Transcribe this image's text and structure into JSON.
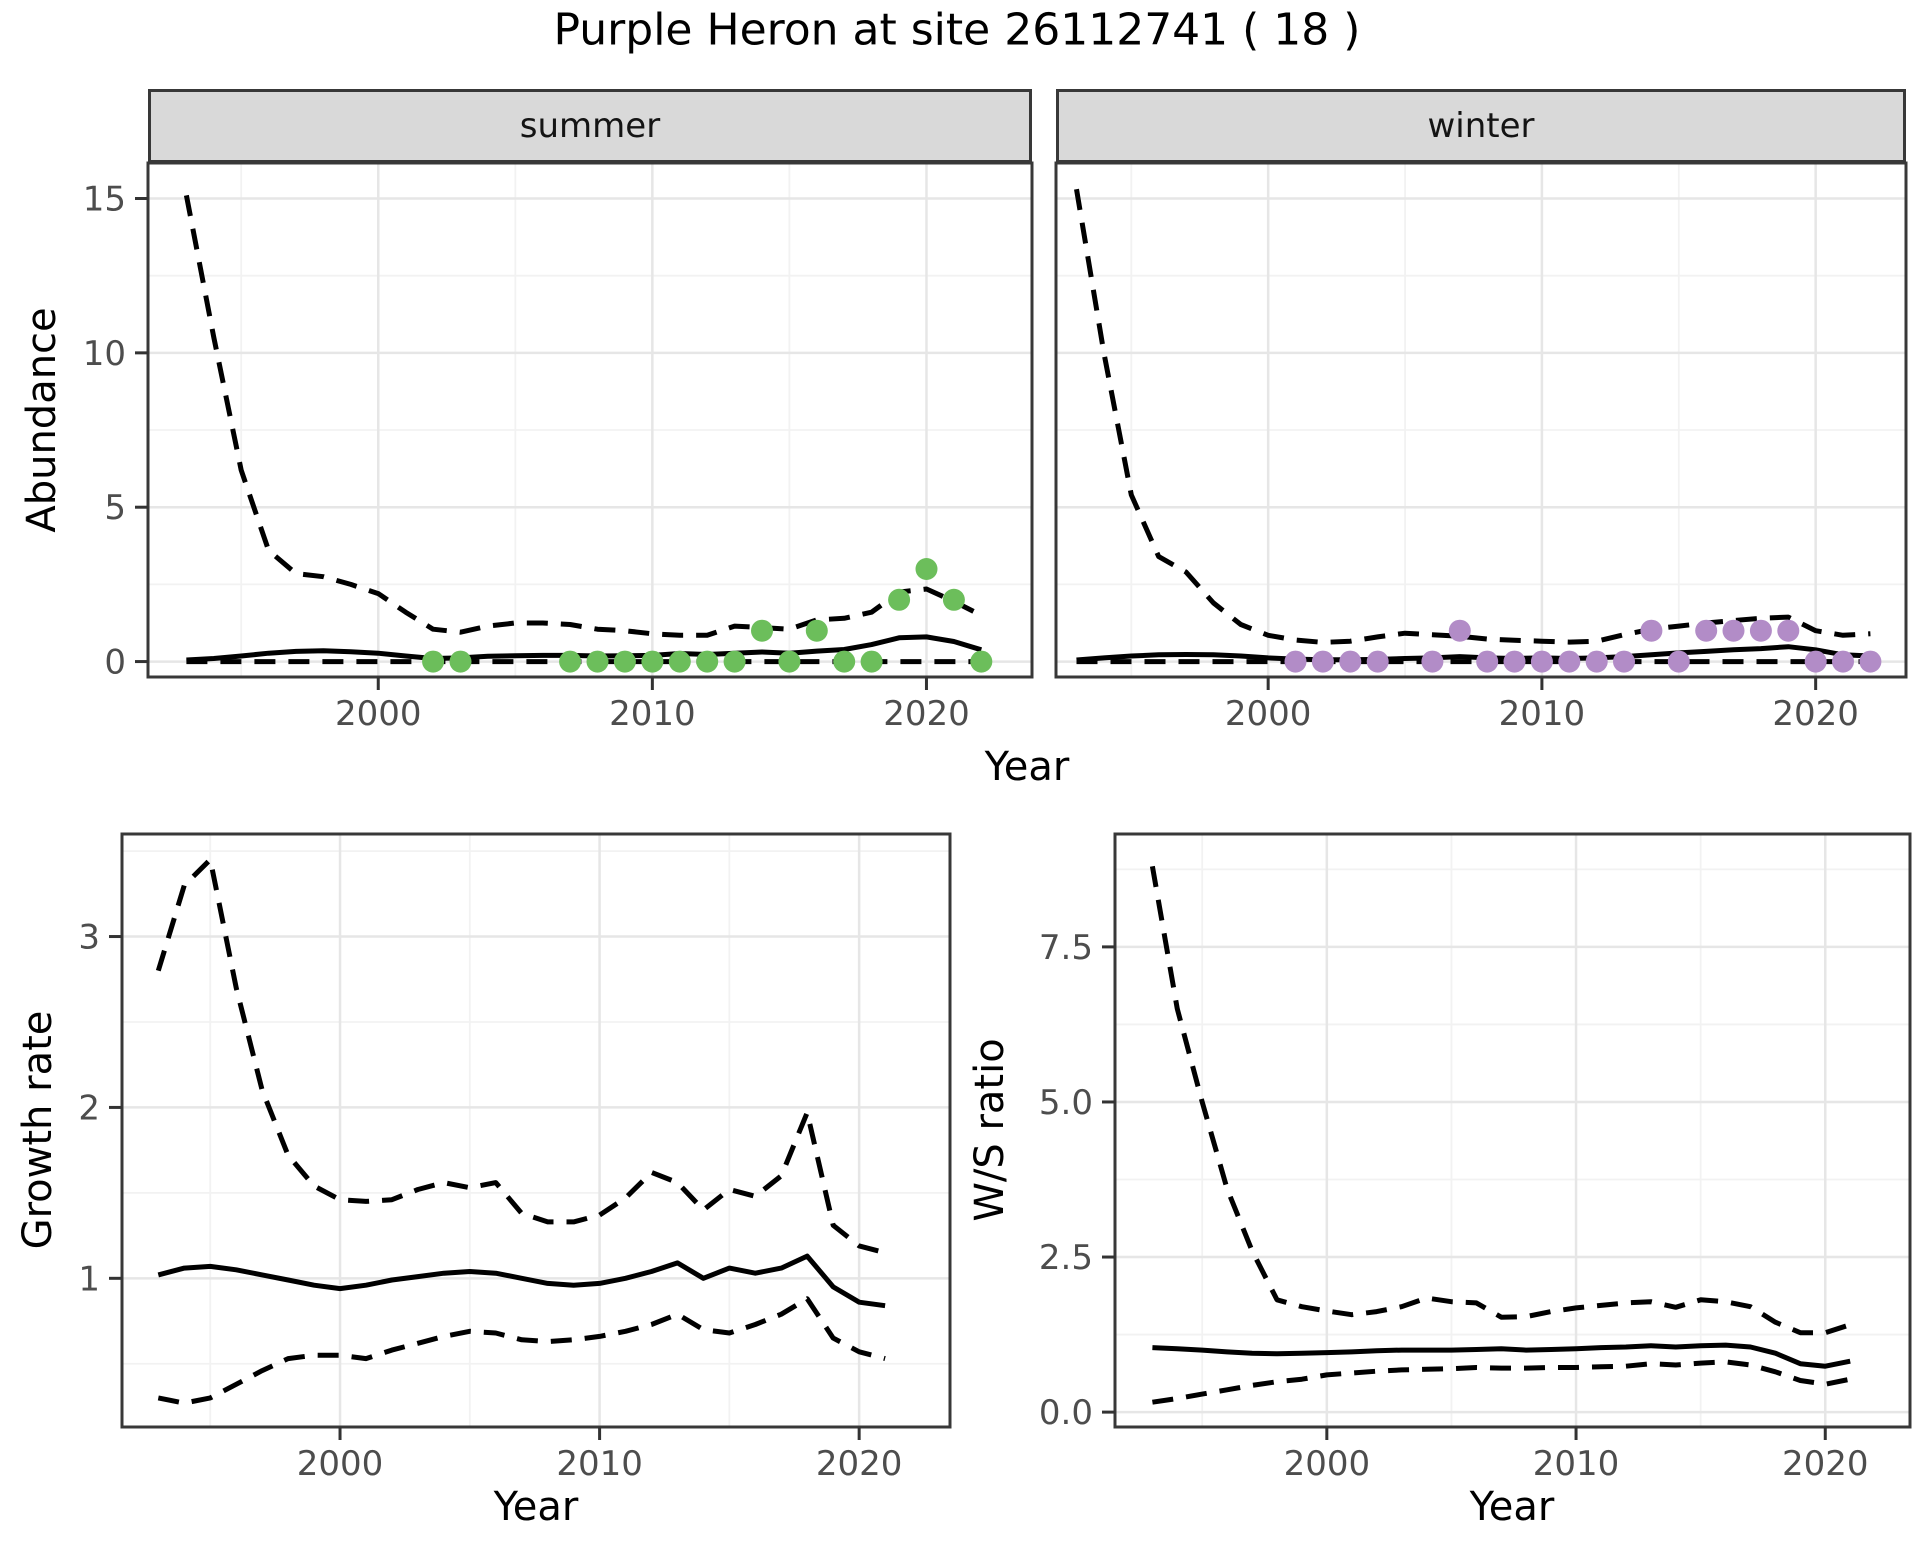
{
  "title": "Purple Heron at site 26112741 ( 18 )",
  "colors": {
    "background": "#ffffff",
    "strip_bg": "#D9D9D9",
    "panel_border": "#383838",
    "grid_major": "#E6E6E6",
    "grid_minor": "#F2F2F2",
    "tick_mark": "#333333",
    "tick_text": "#4D4D4D",
    "line": "#000000",
    "summer_point": "#6CBE5B",
    "winter_point": "#B28CC7"
  },
  "chart_data": [
    {
      "name": "abundance-summer",
      "type": "line",
      "facet_label": "summer",
      "ylabel": "Abundance",
      "xlabel": "Year",
      "xlim": [
        1991.6,
        2023.85
      ],
      "ylim": [
        -0.5,
        16.15
      ],
      "x_major_ticks": [
        2000,
        2010,
        2020
      ],
      "x_tick_labels": [
        "2000",
        "2010",
        "2020"
      ],
      "x_minor_ticks": [
        1995,
        2005,
        2015
      ],
      "y_major_ticks": [
        0,
        5,
        10,
        15
      ],
      "y_tick_labels": [
        "0",
        "5",
        "10",
        "15"
      ],
      "y_minor_ticks": [
        2.5,
        7.5,
        12.5
      ],
      "grid": true,
      "legend": "none",
      "series": [
        {
          "name": "upper-95ci",
          "style": "dashed",
          "color": "#000000",
          "x": [
            1993,
            1994,
            1995,
            1996,
            1997,
            1998,
            1999,
            2000,
            2001,
            2002,
            2003,
            2004,
            2005,
            2006,
            2007,
            2008,
            2009,
            2010,
            2011,
            2012,
            2013,
            2014,
            2015,
            2016,
            2017,
            2018,
            2019,
            2020,
            2021,
            2022
          ],
          "y": [
            15.1,
            10.5,
            6.2,
            3.6,
            2.85,
            2.75,
            2.5,
            2.2,
            1.6,
            1.05,
            0.95,
            1.15,
            1.25,
            1.25,
            1.2,
            1.05,
            1.0,
            0.9,
            0.85,
            0.85,
            1.15,
            1.1,
            1.05,
            1.35,
            1.4,
            1.6,
            2.25,
            2.35,
            1.95,
            1.5
          ]
        },
        {
          "name": "mean",
          "style": "solid",
          "color": "#000000",
          "x": [
            1993,
            1994,
            1995,
            1996,
            1997,
            1998,
            1999,
            2000,
            2001,
            2002,
            2003,
            2004,
            2005,
            2006,
            2007,
            2008,
            2009,
            2010,
            2011,
            2012,
            2013,
            2014,
            2015,
            2016,
            2017,
            2018,
            2019,
            2020,
            2021,
            2022
          ],
          "y": [
            0.05,
            0.1,
            0.18,
            0.27,
            0.33,
            0.35,
            0.32,
            0.27,
            0.18,
            0.1,
            0.12,
            0.17,
            0.19,
            0.2,
            0.2,
            0.18,
            0.19,
            0.2,
            0.26,
            0.23,
            0.27,
            0.31,
            0.27,
            0.34,
            0.39,
            0.55,
            0.77,
            0.8,
            0.65,
            0.38
          ]
        },
        {
          "name": "lower-95ci",
          "style": "dashed",
          "color": "#000000",
          "x": [
            1993,
            1994,
            1995,
            1996,
            1997,
            1998,
            1999,
            2000,
            2001,
            2002,
            2003,
            2004,
            2005,
            2006,
            2007,
            2008,
            2009,
            2010,
            2011,
            2012,
            2013,
            2014,
            2015,
            2016,
            2017,
            2018,
            2019,
            2020,
            2021,
            2022
          ],
          "y": [
            0,
            0,
            0,
            0,
            0,
            0,
            0,
            0,
            0,
            0,
            0,
            0,
            0,
            0,
            0,
            0,
            0,
            0,
            0,
            0,
            0,
            0,
            0,
            0,
            0,
            0,
            0,
            0,
            0,
            0
          ]
        },
        {
          "name": "observed-counts",
          "style": "points",
          "color": "#6CBE5B",
          "x": [
            2002,
            2003,
            2007,
            2008,
            2009,
            2010,
            2011,
            2012,
            2013,
            2014,
            2015,
            2016,
            2017,
            2018,
            2019,
            2020,
            2021,
            2022
          ],
          "y": [
            0,
            0,
            0,
            0,
            0,
            0,
            0,
            0,
            0,
            1,
            0,
            1,
            0,
            0,
            2,
            3,
            2,
            0
          ]
        }
      ]
    },
    {
      "name": "abundance-winter",
      "type": "line",
      "facet_label": "winter",
      "ylabel": "",
      "xlabel": "Year",
      "xlim": [
        1992.25,
        2023.3
      ],
      "ylim": [
        -0.5,
        16.15
      ],
      "x_major_ticks": [
        2000,
        2010,
        2020
      ],
      "x_tick_labels": [
        "2000",
        "2010",
        "2020"
      ],
      "x_minor_ticks": [
        1995,
        2005,
        2015
      ],
      "y_major_ticks": [
        0,
        5,
        10,
        15
      ],
      "y_tick_labels": [
        "0",
        "5",
        "10",
        "15"
      ],
      "y_minor_ticks": [
        2.5,
        7.5,
        12.5
      ],
      "grid": true,
      "legend": "none",
      "series": [
        {
          "name": "upper-95ci",
          "style": "dashed",
          "color": "#000000",
          "x": [
            1993,
            1994,
            1995,
            1996,
            1997,
            1998,
            1999,
            2000,
            2001,
            2002,
            2003,
            2004,
            2005,
            2006,
            2007,
            2008,
            2009,
            2010,
            2011,
            2012,
            2013,
            2014,
            2015,
            2016,
            2017,
            2018,
            2019,
            2020,
            2021,
            2022
          ],
          "y": [
            15.3,
            10.0,
            5.4,
            3.4,
            2.9,
            1.9,
            1.2,
            0.85,
            0.7,
            0.62,
            0.66,
            0.8,
            0.92,
            0.87,
            0.82,
            0.73,
            0.69,
            0.66,
            0.63,
            0.66,
            0.87,
            1.05,
            1.15,
            1.25,
            1.33,
            1.4,
            1.44,
            1.0,
            0.85,
            0.9
          ]
        },
        {
          "name": "mean",
          "style": "solid",
          "color": "#000000",
          "x": [
            1993,
            1994,
            1995,
            1996,
            1997,
            1998,
            1999,
            2000,
            2001,
            2002,
            2003,
            2004,
            2005,
            2006,
            2007,
            2008,
            2009,
            2010,
            2011,
            2012,
            2013,
            2014,
            2015,
            2016,
            2017,
            2018,
            2019,
            2020,
            2021,
            2022
          ],
          "y": [
            0.05,
            0.12,
            0.18,
            0.22,
            0.23,
            0.22,
            0.18,
            0.12,
            0.08,
            0.06,
            0.06,
            0.07,
            0.1,
            0.12,
            0.16,
            0.12,
            0.1,
            0.12,
            0.1,
            0.12,
            0.16,
            0.22,
            0.28,
            0.33,
            0.38,
            0.42,
            0.48,
            0.38,
            0.22,
            0.18
          ]
        },
        {
          "name": "lower-95ci",
          "style": "dashed",
          "color": "#000000",
          "x": [
            1993,
            1994,
            1995,
            1996,
            1997,
            1998,
            1999,
            2000,
            2001,
            2002,
            2003,
            2004,
            2005,
            2006,
            2007,
            2008,
            2009,
            2010,
            2011,
            2012,
            2013,
            2014,
            2015,
            2016,
            2017,
            2018,
            2019,
            2020,
            2021,
            2022
          ],
          "y": [
            0,
            0,
            0,
            0,
            0,
            0,
            0,
            0,
            0,
            0,
            0,
            0,
            0,
            0,
            0,
            0,
            0,
            0,
            0,
            0,
            0,
            0,
            0,
            0,
            0,
            0,
            0,
            0,
            0,
            0
          ]
        },
        {
          "name": "observed-counts",
          "style": "points",
          "color": "#B28CC7",
          "x": [
            2001,
            2002,
            2003,
            2004,
            2006,
            2007,
            2008,
            2009,
            2010,
            2011,
            2012,
            2013,
            2014,
            2015,
            2016,
            2017,
            2018,
            2019,
            2020,
            2021,
            2022
          ],
          "y": [
            0,
            0,
            0,
            0,
            0,
            1,
            0,
            0,
            0,
            0,
            0,
            0,
            1,
            0,
            1,
            1,
            1,
            1,
            0,
            0,
            0
          ]
        }
      ]
    },
    {
      "name": "growth-rate",
      "type": "line",
      "facet_label": "",
      "ylabel": "Growth rate",
      "xlabel": "Year",
      "xlim": [
        1991.6,
        2023.5
      ],
      "ylim": [
        0.13,
        3.6
      ],
      "x_major_ticks": [
        2000,
        2010,
        2020
      ],
      "x_tick_labels": [
        "2000",
        "2010",
        "2020"
      ],
      "x_minor_ticks": [
        1995,
        2005,
        2015
      ],
      "y_major_ticks": [
        1,
        2,
        3
      ],
      "y_tick_labels": [
        "1",
        "2",
        "3"
      ],
      "y_minor_ticks": [
        0.5,
        1.5,
        2.5,
        3.5
      ],
      "grid": true,
      "legend": "none",
      "series": [
        {
          "name": "upper-95ci",
          "style": "dashed",
          "color": "#000000",
          "x": [
            1993,
            1994,
            1995,
            1996,
            1997,
            1998,
            1999,
            2000,
            2001,
            2002,
            2003,
            2004,
            2005,
            2006,
            2007,
            2008,
            2009,
            2010,
            2011,
            2012,
            2013,
            2014,
            2015,
            2016,
            2017,
            2018,
            2019,
            2020,
            2021
          ],
          "y": [
            2.8,
            3.3,
            3.45,
            2.7,
            2.1,
            1.72,
            1.54,
            1.46,
            1.45,
            1.46,
            1.52,
            1.56,
            1.53,
            1.56,
            1.38,
            1.33,
            1.33,
            1.37,
            1.47,
            1.62,
            1.56,
            1.4,
            1.52,
            1.48,
            1.6,
            1.97,
            1.31,
            1.19,
            1.15
          ]
        },
        {
          "name": "mean",
          "style": "solid",
          "color": "#000000",
          "x": [
            1993,
            1994,
            1995,
            1996,
            1997,
            1998,
            1999,
            2000,
            2001,
            2002,
            2003,
            2004,
            2005,
            2006,
            2007,
            2008,
            2009,
            2010,
            2011,
            2012,
            2013,
            2014,
            2015,
            2016,
            2017,
            2018,
            2019,
            2020,
            2021
          ],
          "y": [
            1.02,
            1.06,
            1.07,
            1.05,
            1.02,
            0.99,
            0.96,
            0.94,
            0.96,
            0.99,
            1.01,
            1.03,
            1.04,
            1.03,
            1.0,
            0.97,
            0.96,
            0.97,
            1.0,
            1.04,
            1.09,
            1.0,
            1.06,
            1.03,
            1.06,
            1.13,
            0.95,
            0.86,
            0.84
          ]
        },
        {
          "name": "lower-95ci",
          "style": "dashed",
          "color": "#000000",
          "x": [
            1993,
            1994,
            1995,
            1996,
            1997,
            1998,
            1999,
            2000,
            2001,
            2002,
            2003,
            2004,
            2005,
            2006,
            2007,
            2008,
            2009,
            2010,
            2011,
            2012,
            2013,
            2014,
            2015,
            2016,
            2017,
            2018,
            2019,
            2020,
            2021
          ],
          "y": [
            0.3,
            0.27,
            0.3,
            0.38,
            0.46,
            0.53,
            0.55,
            0.55,
            0.53,
            0.58,
            0.62,
            0.66,
            0.69,
            0.68,
            0.64,
            0.63,
            0.64,
            0.66,
            0.69,
            0.73,
            0.79,
            0.7,
            0.68,
            0.73,
            0.79,
            0.88,
            0.65,
            0.57,
            0.53
          ]
        }
      ]
    },
    {
      "name": "ws-ratio",
      "type": "line",
      "facet_label": "",
      "ylabel": "W/S ratio",
      "xlabel": "Year",
      "xlim": [
        1991.5,
        2023.4
      ],
      "ylim": [
        -0.24,
        9.32
      ],
      "x_major_ticks": [
        2000,
        2010,
        2020
      ],
      "x_tick_labels": [
        "2000",
        "2010",
        "2020"
      ],
      "x_minor_ticks": [
        1995,
        2005,
        2015
      ],
      "y_major_ticks": [
        0.0,
        2.5,
        5.0,
        7.5
      ],
      "y_tick_labels": [
        "0.0",
        "2.5",
        "5.0",
        "7.5"
      ],
      "y_minor_ticks": [
        1.25,
        3.75,
        6.25,
        8.75
      ],
      "grid": true,
      "legend": "none",
      "series": [
        {
          "name": "upper-95ci",
          "style": "dashed",
          "color": "#000000",
          "x": [
            1993,
            1994,
            1995,
            1996,
            1997,
            1998,
            1999,
            2000,
            2001,
            2002,
            2003,
            2004,
            2005,
            2006,
            2007,
            2008,
            2009,
            2010,
            2011,
            2012,
            2013,
            2014,
            2015,
            2016,
            2017,
            2018,
            2019,
            2020,
            2021
          ],
          "y": [
            8.8,
            6.5,
            5.0,
            3.6,
            2.6,
            1.81,
            1.7,
            1.63,
            1.57,
            1.62,
            1.7,
            1.84,
            1.78,
            1.76,
            1.53,
            1.54,
            1.62,
            1.68,
            1.72,
            1.76,
            1.78,
            1.69,
            1.81,
            1.78,
            1.7,
            1.45,
            1.28,
            1.28,
            1.41
          ]
        },
        {
          "name": "mean",
          "style": "solid",
          "color": "#000000",
          "x": [
            1993,
            1994,
            1995,
            1996,
            1997,
            1998,
            1999,
            2000,
            2001,
            2002,
            2003,
            2004,
            2005,
            2006,
            2007,
            2008,
            2009,
            2010,
            2011,
            2012,
            2013,
            2014,
            2015,
            2016,
            2017,
            2018,
            2019,
            2020,
            2021
          ],
          "y": [
            1.04,
            1.02,
            1.0,
            0.97,
            0.95,
            0.94,
            0.95,
            0.96,
            0.97,
            0.99,
            1.0,
            1.0,
            1.0,
            1.01,
            1.02,
            1.0,
            1.01,
            1.02,
            1.04,
            1.05,
            1.07,
            1.05,
            1.07,
            1.08,
            1.05,
            0.95,
            0.78,
            0.74,
            0.82
          ]
        },
        {
          "name": "lower-95ci",
          "style": "dashed",
          "color": "#000000",
          "x": [
            1993,
            1994,
            1995,
            1996,
            1997,
            1998,
            1999,
            2000,
            2001,
            2002,
            2003,
            2004,
            2005,
            2006,
            2007,
            2008,
            2009,
            2010,
            2011,
            2012,
            2013,
            2014,
            2015,
            2016,
            2017,
            2018,
            2019,
            2020,
            2021
          ],
          "y": [
            0.16,
            0.22,
            0.29,
            0.36,
            0.43,
            0.49,
            0.53,
            0.6,
            0.63,
            0.66,
            0.68,
            0.69,
            0.7,
            0.72,
            0.71,
            0.71,
            0.72,
            0.72,
            0.73,
            0.74,
            0.78,
            0.76,
            0.79,
            0.81,
            0.76,
            0.65,
            0.51,
            0.45,
            0.53
          ]
        }
      ]
    }
  ]
}
